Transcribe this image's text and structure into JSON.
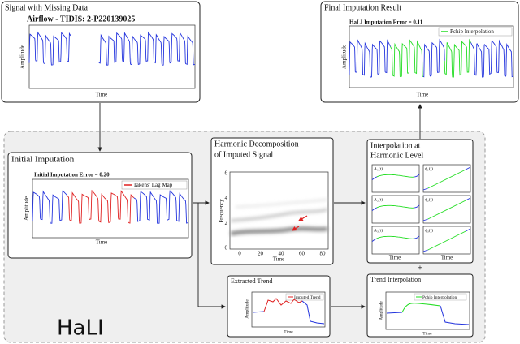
{
  "panels": {
    "missing": {
      "title": "Signal with Missing Data",
      "plot_title": "Airflow - TIDIS: 2-P220139025",
      "y_label": "Amplitude",
      "x_label": "Time"
    },
    "final": {
      "title": "Final Imputation Result",
      "plot_title": "HaLI Imputation Error = 0.11",
      "legend": "Pchip Interpolation",
      "y_label": "Amplitude",
      "x_label": "Time"
    },
    "initial": {
      "title": "Initial Imputation",
      "plot_title": "Initial Imputation Error = 0.20",
      "legend": "Takens' Lag Map",
      "y_label": "Amplitude",
      "x_label": "Time"
    },
    "harmonic": {
      "title_lines": [
        "Harmonic Decomposition",
        "of Imputed Signal"
      ],
      "y_label": "Frequency",
      "x_label": "Time",
      "yticks": [
        0,
        2,
        4,
        6
      ],
      "xticks": [
        0,
        20,
        40,
        60,
        80
      ]
    },
    "interp": {
      "title_lines": [
        "Interpolation at",
        "Harmonic Level"
      ],
      "subplots": [
        "A₁(t)",
        "ϕ₁(t)",
        "A₂(t)",
        "ϕ₂(t)",
        "A₃(t)",
        "ϕ₃(t)"
      ],
      "x_label": "Time"
    },
    "plus": "+",
    "trend": {
      "title": "Extracted Trend",
      "legend": "Imputed Trend",
      "y_label": "Amplitude",
      "x_label": "Time"
    },
    "trend_interp": {
      "title": "Trend Interpolation",
      "legend": "Pchip Interpolation",
      "y_label": "Amplitude",
      "x_label": "Time"
    }
  },
  "label": "HaLI"
}
